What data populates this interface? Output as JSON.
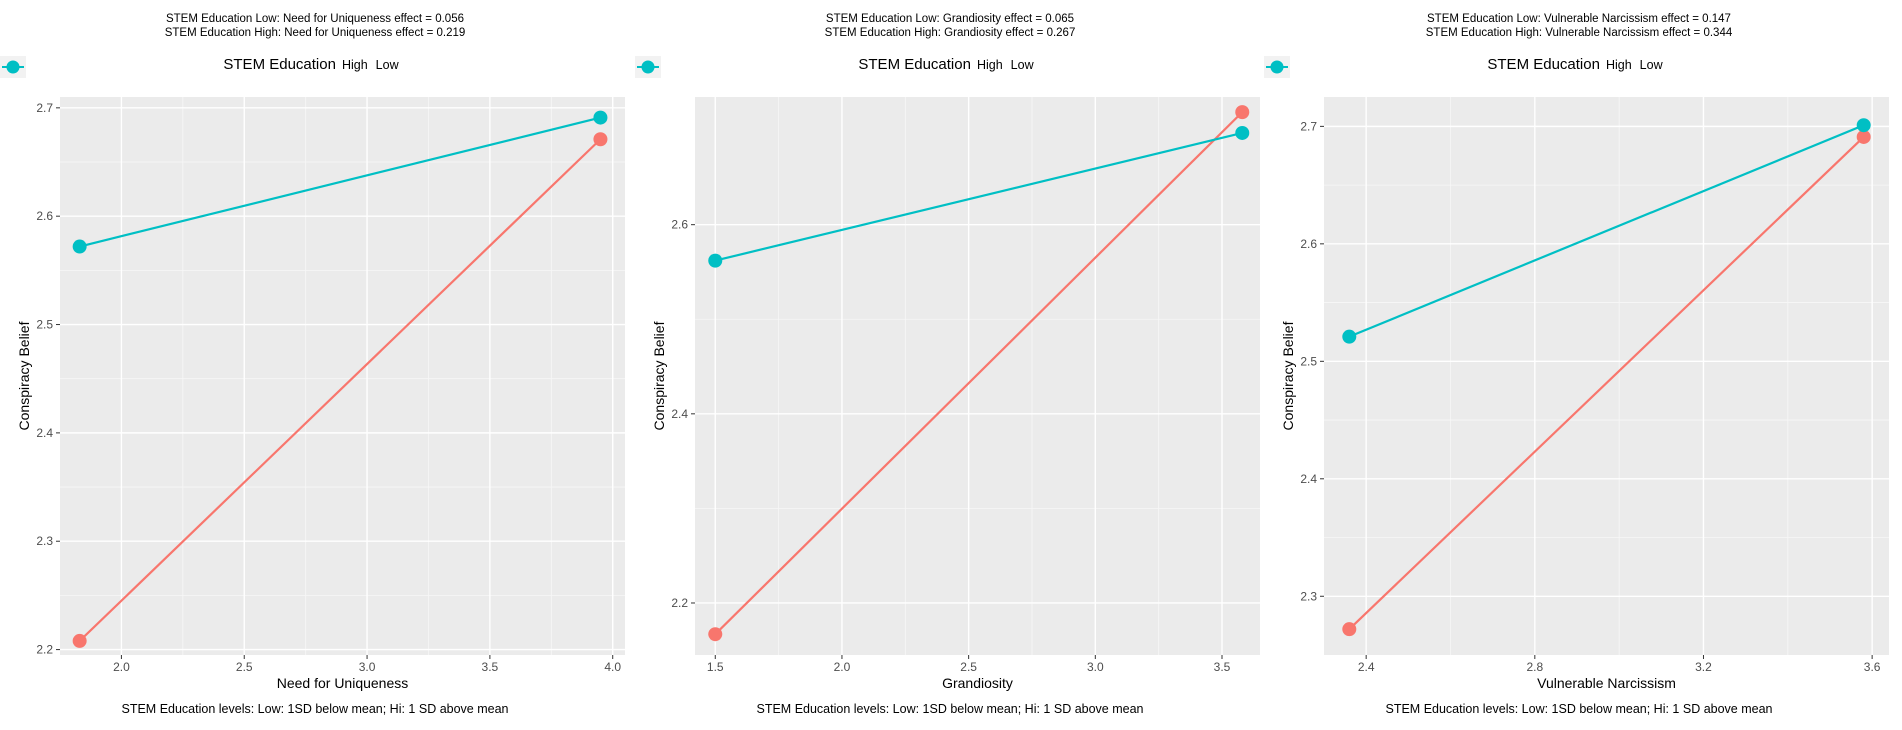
{
  "legend": {
    "title": "STEM Education",
    "items": [
      {
        "label": "High",
        "color": "#F8766D"
      },
      {
        "label": "Low",
        "color": "#00BFC4"
      }
    ]
  },
  "caption": "STEM Education levels: Low: 1SD below mean; Hi: 1 SD above mean",
  "chart_data": [
    {
      "type": "line",
      "title_line1": "STEM Education Low: Need for Uniqueness effect = 0.056",
      "title_line2": "STEM Education High: Need for Uniqueness effect = 0.219",
      "xlabel": "Need for Uniqueness",
      "ylabel": "Conspiracy Belief",
      "xlim": [
        1.75,
        4.05
      ],
      "ylim": [
        2.195,
        2.71
      ],
      "xticks": [
        2.0,
        2.5,
        3.0,
        3.5,
        4.0
      ],
      "xtick_labels": [
        "2.0",
        "2.5",
        "3.0",
        "3.5",
        "4.0"
      ],
      "yticks": [
        2.2,
        2.3,
        2.4,
        2.5,
        2.6,
        2.7
      ],
      "ytick_labels": [
        "2.2",
        "2.3",
        "2.4",
        "2.5",
        "2.6",
        "2.7"
      ],
      "grid": true,
      "x": [
        1.83,
        3.95
      ],
      "series": [
        {
          "name": "High",
          "color": "#F8766D",
          "values": [
            2.208,
            2.671
          ]
        },
        {
          "name": "Low",
          "color": "#00BFC4",
          "values": [
            2.572,
            2.691
          ]
        }
      ]
    },
    {
      "type": "line",
      "title_line1": "STEM Education Low: Grandiosity effect = 0.065",
      "title_line2": "STEM Education High: Grandiosity effect = 0.267",
      "xlabel": "Grandiosity",
      "ylabel": "Conspiracy Belief",
      "xlim": [
        1.42,
        3.65
      ],
      "ylim": [
        2.145,
        2.735
      ],
      "xticks": [
        1.5,
        2.0,
        2.5,
        3.0,
        3.5
      ],
      "xtick_labels": [
        "1.5",
        "2.0",
        "2.5",
        "3.0",
        "3.5"
      ],
      "yticks": [
        2.2,
        2.4,
        2.6
      ],
      "ytick_labels": [
        "2.2",
        "2.4",
        "2.6"
      ],
      "grid": true,
      "x": [
        1.5,
        3.58
      ],
      "series": [
        {
          "name": "High",
          "color": "#F8766D",
          "values": [
            2.167,
            2.719
          ]
        },
        {
          "name": "Low",
          "color": "#00BFC4",
          "values": [
            2.562,
            2.697
          ]
        }
      ]
    },
    {
      "type": "line",
      "title_line1": "STEM Education Low: Vulnerable Narcissism effect = 0.147",
      "title_line2": "STEM Education High: Vulnerable Narcissism effect = 0.344",
      "xlabel": "Vulnerable Narcissism",
      "ylabel": "Conspiracy Belief",
      "xlim": [
        2.3,
        3.64
      ],
      "ylim": [
        2.25,
        2.725
      ],
      "xticks": [
        2.4,
        2.8,
        3.2,
        3.6
      ],
      "xtick_labels": [
        "2.4",
        "2.8",
        "3.2",
        "3.6"
      ],
      "yticks": [
        2.3,
        2.4,
        2.5,
        2.6,
        2.7
      ],
      "ytick_labels": [
        "2.3",
        "2.4",
        "2.5",
        "2.6",
        "2.7"
      ],
      "grid": true,
      "x": [
        2.36,
        3.58
      ],
      "series": [
        {
          "name": "High",
          "color": "#F8766D",
          "values": [
            2.272,
            2.691
          ]
        },
        {
          "name": "Low",
          "color": "#00BFC4",
          "values": [
            2.521,
            2.701
          ]
        }
      ]
    }
  ]
}
